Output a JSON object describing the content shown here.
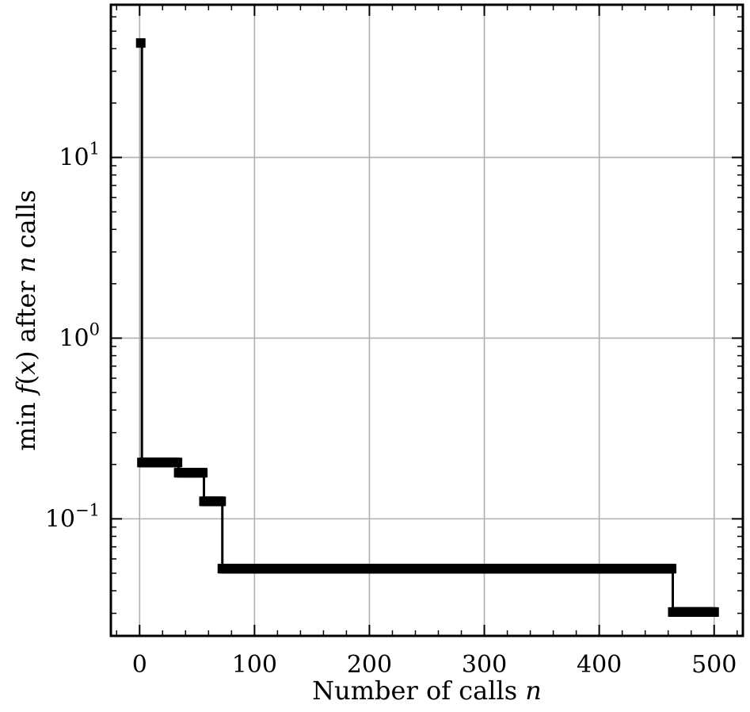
{
  "chart_data": {
    "type": "line",
    "title": "",
    "xlabel": "Number of calls n",
    "ylabel": "min f(x) after n calls",
    "xlabel_parts": [
      "Number of calls ",
      "n"
    ],
    "ylabel_parts": [
      "min ",
      "f",
      "(",
      "x",
      ")",
      " after ",
      "n",
      " calls"
    ],
    "xlim": [
      -25,
      525
    ],
    "ylim": [
      0.0225,
      70
    ],
    "yscale": "log",
    "grid": true,
    "legend": "none",
    "x_ticks": [
      0,
      100,
      200,
      300,
      400,
      500
    ],
    "x_tick_labels": [
      "0",
      "100",
      "200",
      "300",
      "400",
      "500"
    ],
    "y_ticks": [
      {
        "value": 0.1,
        "base": "10",
        "exp": "−1"
      },
      {
        "value": 1,
        "base": "10",
        "exp": "0"
      },
      {
        "value": 10,
        "base": "10",
        "exp": "1"
      }
    ],
    "series": [
      {
        "color": "#000000",
        "marker": "square",
        "points": [
          {
            "x": 1,
            "y": 43
          },
          {
            "x": 2,
            "y": 0.205
          },
          {
            "x": 34,
            "y": 0.18
          },
          {
            "x": 56,
            "y": 0.125
          },
          {
            "x": 72,
            "y": 0.053
          },
          {
            "x": 464,
            "y": 0.0305
          },
          {
            "x": 500,
            "y": 0.0305
          }
        ]
      }
    ]
  }
}
